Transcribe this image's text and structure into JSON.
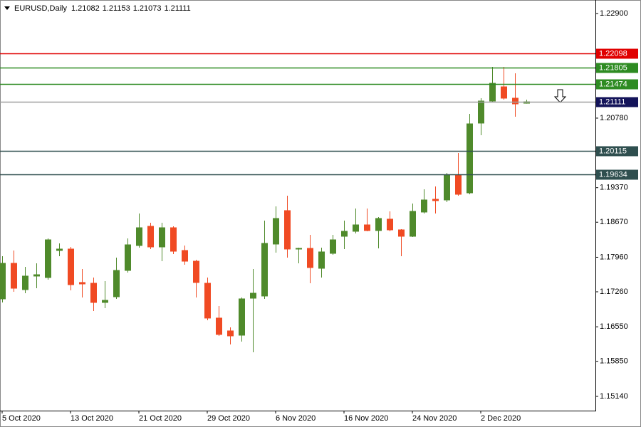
{
  "chart_data": {
    "type": "candlestick",
    "title": "EURUSD,Daily",
    "categories": [
      "5 Oct 2020",
      null,
      null,
      null,
      null,
      null,
      "13 Oct 2020",
      null,
      null,
      null,
      null,
      null,
      "21 Oct 2020",
      null,
      null,
      null,
      null,
      null,
      "29 Oct 2020",
      null,
      null,
      null,
      null,
      null,
      "6 Nov 2020",
      null,
      null,
      null,
      null,
      null,
      "16 Nov 2020",
      null,
      null,
      null,
      null,
      null,
      "24 Nov 2020",
      null,
      null,
      null,
      null,
      null,
      "2 Dec 2020",
      null,
      null,
      null,
      null
    ],
    "open": [
      1.17116,
      1.17837,
      1.17304,
      1.17578,
      1.17549,
      1.18097,
      1.18126,
      1.17448,
      1.17433,
      1.17044,
      1.17159,
      1.17693,
      1.18198,
      1.18587,
      1.18169,
      1.18558,
      1.18097,
      1.1788,
      1.17433,
      1.16727,
      1.16467,
      1.1638,
      1.1713,
      1.17174,
      1.18227,
      1.18905,
      1.18126,
      1.1814,
      1.17736,
      1.18039,
      1.18385,
      1.18486,
      1.18616,
      1.18501,
      1.18732,
      1.18515,
      1.18385,
      1.18876,
      1.19135,
      1.19121,
      1.19626,
      1.19265,
      1.20679,
      1.21126,
      1.21414,
      1.21184,
      1.21082
    ],
    "high": [
      1.17981,
      1.18097,
      1.17765,
      1.17837,
      1.18342,
      1.18241,
      1.18169,
      1.17722,
      1.17549,
      1.17477,
      1.17953,
      1.18342,
      1.18847,
      1.18659,
      1.18659,
      1.18587,
      1.18198,
      1.17909,
      1.17549,
      1.16972,
      1.16539,
      1.17145,
      1.17722,
      1.18703,
      1.18991,
      1.19208,
      1.18155,
      1.18414,
      1.18155,
      1.18414,
      1.18703,
      1.18948,
      1.18948,
      1.18775,
      1.1889,
      1.1853,
      1.19049,
      1.19337,
      1.19395,
      1.19669,
      1.20073,
      1.20866,
      1.21184,
      1.21818,
      1.21818,
      1.21688,
      1.21153
    ],
    "low": [
      1.17044,
      1.1726,
      1.17231,
      1.17332,
      1.17505,
      1.17981,
      1.17289,
      1.17145,
      1.16871,
      1.16929,
      1.17116,
      1.1765,
      1.18155,
      1.18126,
      1.1788,
      1.18025,
      1.17808,
      1.17145,
      1.16683,
      1.16366,
      1.16193,
      1.16251,
      1.16034,
      1.17116,
      1.18054,
      1.17953,
      1.17837,
      1.17433,
      1.17549,
      1.1801,
      1.18126,
      1.18443,
      1.18486,
      1.1814,
      1.18486,
      1.17981,
      1.18371,
      1.18847,
      1.18847,
      1.19078,
      1.19208,
      1.19236,
      1.20434,
      1.21097,
      1.21155,
      1.20809,
      1.21073
    ],
    "close": [
      1.17837,
      1.17332,
      1.17578,
      1.17606,
      1.18313,
      1.18126,
      1.17404,
      1.17419,
      1.17044,
      1.17087,
      1.17693,
      1.18212,
      1.18558,
      1.18169,
      1.18558,
      1.18082,
      1.1788,
      1.17448,
      1.16727,
      1.16395,
      1.16366,
      1.17116,
      1.17231,
      1.18241,
      1.18746,
      1.18126,
      1.1814,
      1.17751,
      1.18068,
      1.18313,
      1.18486,
      1.18616,
      1.18501,
      1.18746,
      1.18515,
      1.18385,
      1.1889,
      1.19121,
      1.19107,
      1.19626,
      1.19236,
      1.20664,
      1.21126,
      1.21486,
      1.21184,
      1.21068,
      1.21111
    ],
    "up_color": "#4f8a2b",
    "down_color": "#f04a23",
    "ylim": [
      1.14851,
      1.23174
    ],
    "yticks": [
      {
        "value": 1.229,
        "label": "1.22900"
      },
      {
        "value": 1.2078,
        "label": "1.20780"
      },
      {
        "value": 1.1937,
        "label": "1.19370"
      },
      {
        "value": 1.1867,
        "label": "1.18670"
      },
      {
        "value": 1.1796,
        "label": "1.17960"
      },
      {
        "value": 1.1726,
        "label": "1.17260"
      },
      {
        "value": 1.1655,
        "label": "1.16550"
      },
      {
        "value": 1.1585,
        "label": "1.15850"
      },
      {
        "value": 1.1514,
        "label": "1.15140"
      }
    ],
    "levels": [
      {
        "value": 1.22098,
        "color": "#e00000",
        "label_color": "#e00000"
      },
      {
        "value": 1.21805,
        "color": "#2e8b22",
        "label_color": "#2e8b22"
      },
      {
        "value": 1.21474,
        "color": "#2e8b22",
        "label_color": "#2e8b22"
      },
      {
        "value": 1.21111,
        "color": "#a0a0a0",
        "label_color": "#14145a"
      },
      {
        "value": 1.20115,
        "color": "#2f4f4f",
        "label_color": "#2f4f4f"
      },
      {
        "value": 1.19634,
        "color": "#2f4f4f",
        "label_color": "#2f4f4f"
      }
    ]
  }
}
